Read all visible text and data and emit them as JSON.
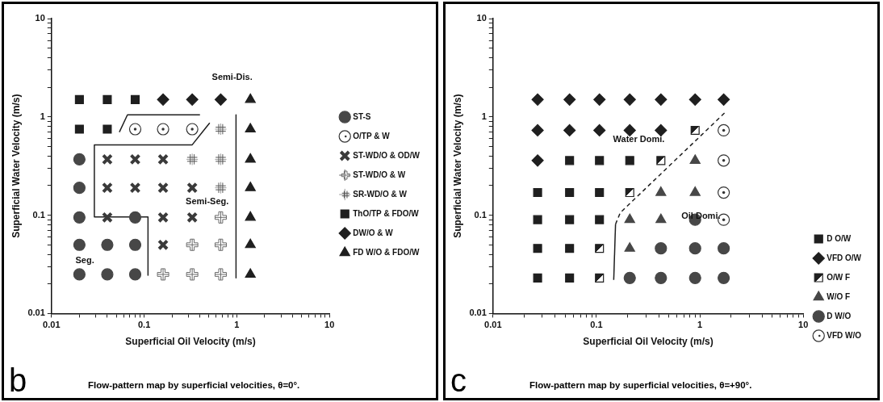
{
  "chart_data": [
    {
      "type": "scatter",
      "xlabel": "Superficial Oil Velocity (m/s)",
      "ylabel": "Superficial Water Velocity (m/s)",
      "log": "xy",
      "xlim": [
        0.01,
        10
      ],
      "ylim": [
        0.01,
        10
      ],
      "xticks": [
        0.01,
        {
          "value": 0.02,
          "label": null
        },
        {
          "value": 0.03,
          "label": null
        },
        {
          "value": 0.04,
          "label": null
        },
        {
          "value": 0.05,
          "label": null
        },
        {
          "value": 0.06,
          "label": null
        },
        {
          "value": 0.07,
          "label": null
        },
        {
          "value": 0.08,
          "label": null
        },
        {
          "value": 0.09,
          "label": null
        },
        0.1,
        {
          "value": 0.2,
          "label": null
        },
        {
          "value": 0.3,
          "label": null
        },
        {
          "value": 0.4,
          "label": null
        },
        {
          "value": 0.5,
          "label": null
        },
        {
          "value": 0.6,
          "label": null
        },
        {
          "value": 0.7,
          "label": null
        },
        {
          "value": 0.8,
          "label": null
        },
        {
          "value": 0.9,
          "label": null
        },
        1,
        {
          "value": 2,
          "label": null
        },
        {
          "value": 3,
          "label": null
        },
        {
          "value": 4,
          "label": null
        },
        {
          "value": 5,
          "label": null
        },
        {
          "value": 6,
          "label": null
        },
        {
          "value": 7,
          "label": null
        },
        {
          "value": 8,
          "label": null
        },
        {
          "value": 9,
          "label": null
        },
        10
      ],
      "yticks": [
        0.01,
        {
          "value": 0.02,
          "label": null
        },
        {
          "value": 0.03,
          "label": null
        },
        {
          "value": 0.04,
          "label": null
        },
        {
          "value": 0.05,
          "label": null
        },
        {
          "value": 0.06,
          "label": null
        },
        {
          "value": 0.07,
          "label": null
        },
        {
          "value": 0.08,
          "label": null
        },
        {
          "value": 0.09,
          "label": null
        },
        0.1,
        {
          "value": 0.2,
          "label": null
        },
        {
          "value": 0.3,
          "label": null
        },
        {
          "value": 0.4,
          "label": null
        },
        {
          "value": 0.5,
          "label": null
        },
        {
          "value": 0.6,
          "label": null
        },
        {
          "value": 0.7,
          "label": null
        },
        {
          "value": 0.8,
          "label": null
        },
        {
          "value": 0.9,
          "label": null
        },
        1,
        {
          "value": 2,
          "label": null
        },
        {
          "value": 3,
          "label": null
        },
        {
          "value": 4,
          "label": null
        },
        {
          "value": 5,
          "label": null
        },
        {
          "value": 6,
          "label": null
        },
        {
          "value": 7,
          "label": null
        },
        {
          "value": 8,
          "label": null
        },
        {
          "value": 9,
          "label": null
        },
        10
      ],
      "legend": "right",
      "series": [
        {
          "name": "ST-S",
          "marker": "circle",
          "color": "#474747",
          "x": [
            0.02,
            0.02,
            0.02,
            0.08,
            0.02,
            0.04,
            0.08,
            0.02,
            0.04,
            0.08
          ],
          "values": [
            0.37,
            0.19,
            0.095,
            0.095,
            0.05,
            0.05,
            0.05,
            0.025,
            0.025,
            0.025
          ]
        },
        {
          "name": "O/TP & W",
          "marker": "circle",
          "color": "#333333",
          "x": [
            0.08,
            0.16,
            0.33
          ],
          "values": [
            0.75,
            0.75,
            0.75
          ]
        },
        {
          "name": "ST-WD/O & OD/W",
          "marker": "cross",
          "color": "#3a3a3a",
          "x": [
            0.04,
            0.08,
            0.16,
            0.04,
            0.08,
            0.16,
            0.33,
            0.04,
            0.16,
            0.33,
            0.16
          ],
          "values": [
            0.37,
            0.37,
            0.37,
            0.19,
            0.19,
            0.19,
            0.19,
            0.095,
            0.095,
            0.095,
            0.05
          ]
        },
        {
          "name": "ST-WD/O & W",
          "marker": "cross",
          "color": "#6a6a6a",
          "x": [
            0.67,
            0.33,
            0.67,
            0.16,
            0.33,
            0.67
          ],
          "values": [
            0.095,
            0.05,
            0.05,
            0.025,
            0.025,
            0.025
          ]
        },
        {
          "name": "SR-WD/O & W",
          "marker": "cross",
          "color": "#555555",
          "x": [
            0.67,
            0.33,
            0.67,
            0.67
          ],
          "values": [
            0.75,
            0.37,
            0.37,
            0.19
          ]
        },
        {
          "name": "ThO/TP & FDO/W",
          "marker": "square",
          "color": "#1f1f1f",
          "x": [
            0.02,
            0.04,
            0.08,
            0.02,
            0.04
          ],
          "values": [
            1.5,
            1.5,
            1.5,
            0.75,
            0.75
          ]
        },
        {
          "name": "DW/O & W",
          "marker": "diamond",
          "color": "#1f1f1f",
          "x": [
            0.16,
            0.33,
            0.67
          ],
          "values": [
            1.5,
            1.5,
            1.5
          ]
        },
        {
          "name": "FD W/O & FDO/W",
          "marker": "triangle",
          "color": "#1f1f1f",
          "x": [
            1.4,
            1.4,
            1.4,
            1.4,
            1.4,
            1.4,
            1.4
          ],
          "values": [
            1.5,
            0.75,
            0.37,
            0.19,
            0.095,
            0.05,
            0.025
          ]
        },
        {
          "type": "line",
          "marker": "none",
          "line_style": "solid",
          "color": "#1f1f1f",
          "x": [
            0.054,
            0.066,
            0.4
          ],
          "values": [
            0.7,
            1.05,
            1.05
          ]
        },
        {
          "type": "line",
          "marker": "none",
          "line_style": "solid",
          "color": "#1f1f1f",
          "x": [
            0.51,
            0.33,
            0.029,
            0.029,
            0.11,
            0.11
          ],
          "values": [
            0.87,
            0.52,
            0.52,
            0.096,
            0.096,
            0.0245
          ]
        },
        {
          "type": "line",
          "marker": "none",
          "line_style": "solid",
          "color": "#1f1f1f",
          "x": [
            0.98,
            0.98
          ],
          "values": [
            1.05,
            0.023
          ]
        }
      ],
      "annotations": [
        "Semi-Dis.",
        "Semi-Seg.",
        "Seg.",
        "b",
        "Flow-pattern map by superficial velocities, θ=0°."
      ]
    },
    {
      "type": "scatter",
      "xlabel": "Superficial Oil Velocity (m/s)",
      "ylabel": "Superficial Water Velocity (m/s)",
      "log": "xy",
      "xlim": [
        0.01,
        10
      ],
      "ylim": [
        0.01,
        10
      ],
      "xticks": [
        0.01,
        {
          "value": 0.02,
          "label": null
        },
        {
          "value": 0.03,
          "label": null
        },
        {
          "value": 0.04,
          "label": null
        },
        {
          "value": 0.05,
          "label": null
        },
        {
          "value": 0.06,
          "label": null
        },
        {
          "value": 0.07,
          "label": null
        },
        {
          "value": 0.08,
          "label": null
        },
        {
          "value": 0.09,
          "label": null
        },
        0.1,
        {
          "value": 0.2,
          "label": null
        },
        {
          "value": 0.3,
          "label": null
        },
        {
          "value": 0.4,
          "label": null
        },
        {
          "value": 0.5,
          "label": null
        },
        {
          "value": 0.6,
          "label": null
        },
        {
          "value": 0.7,
          "label": null
        },
        {
          "value": 0.8,
          "label": null
        },
        {
          "value": 0.9,
          "label": null
        },
        1,
        {
          "value": 2,
          "label": null
        },
        {
          "value": 3,
          "label": null
        },
        {
          "value": 4,
          "label": null
        },
        {
          "value": 5,
          "label": null
        },
        {
          "value": 6,
          "label": null
        },
        {
          "value": 7,
          "label": null
        },
        {
          "value": 8,
          "label": null
        },
        {
          "value": 9,
          "label": null
        },
        10
      ],
      "yticks": [
        0.01,
        {
          "value": 0.02,
          "label": null
        },
        {
          "value": 0.03,
          "label": null
        },
        {
          "value": 0.04,
          "label": null
        },
        {
          "value": 0.05,
          "label": null
        },
        {
          "value": 0.06,
          "label": null
        },
        {
          "value": 0.07,
          "label": null
        },
        {
          "value": 0.08,
          "label": null
        },
        {
          "value": 0.09,
          "label": null
        },
        0.1,
        {
          "value": 0.2,
          "label": null
        },
        {
          "value": 0.3,
          "label": null
        },
        {
          "value": 0.4,
          "label": null
        },
        {
          "value": 0.5,
          "label": null
        },
        {
          "value": 0.6,
          "label": null
        },
        {
          "value": 0.7,
          "label": null
        },
        {
          "value": 0.8,
          "label": null
        },
        {
          "value": 0.9,
          "label": null
        },
        1,
        {
          "value": 2,
          "label": null
        },
        {
          "value": 3,
          "label": null
        },
        {
          "value": 4,
          "label": null
        },
        {
          "value": 5,
          "label": null
        },
        {
          "value": 6,
          "label": null
        },
        {
          "value": 7,
          "label": null
        },
        {
          "value": 8,
          "label": null
        },
        {
          "value": 9,
          "label": null
        },
        10
      ],
      "legend": "bottom right",
      "series": [
        {
          "name": "D O/W",
          "marker": "square",
          "color": "#1f1f1f",
          "x": [
            0.055,
            0.107,
            0.21,
            0.027,
            0.055,
            0.107,
            0.027,
            0.055,
            0.107,
            0.027,
            0.055,
            0.027,
            0.055
          ],
          "values": [
            0.36,
            0.36,
            0.36,
            0.17,
            0.17,
            0.17,
            0.09,
            0.09,
            0.09,
            0.046,
            0.046,
            0.023,
            0.023
          ]
        },
        {
          "name": "VFD O/W",
          "marker": "diamond",
          "color": "#1f1f1f",
          "x": [
            0.027,
            0.055,
            0.107,
            0.21,
            0.42,
            0.9,
            1.7,
            0.027,
            0.055,
            0.107,
            0.21,
            0.42,
            0.027
          ],
          "values": [
            1.5,
            1.5,
            1.5,
            1.5,
            1.5,
            1.5,
            1.5,
            0.73,
            0.73,
            0.73,
            0.73,
            0.73,
            0.36
          ]
        },
        {
          "name": "O/W F",
          "marker": "square",
          "color": "#1f1f1f",
          "x": [
            0.9,
            0.42,
            0.21,
            0.107,
            0.107
          ],
          "values": [
            0.73,
            0.36,
            0.17,
            0.046,
            0.023
          ]
        },
        {
          "name": "W/O F",
          "marker": "triangle",
          "color": "#474747",
          "x": [
            0.9,
            0.42,
            0.9,
            0.21,
            0.42,
            0.21
          ],
          "values": [
            0.36,
            0.17,
            0.17,
            0.09,
            0.09,
            0.046
          ]
        },
        {
          "name": "D W/O",
          "marker": "circle",
          "color": "#474747",
          "x": [
            0.9,
            0.42,
            0.9,
            1.7,
            0.21,
            0.42,
            0.9,
            1.7
          ],
          "values": [
            0.09,
            0.046,
            0.046,
            0.046,
            0.023,
            0.023,
            0.023,
            0.023
          ]
        },
        {
          "name": "VFD W/O",
          "marker": "circle",
          "color": "#333333",
          "x": [
            1.7,
            1.7,
            1.7,
            1.7
          ],
          "values": [
            0.73,
            0.36,
            0.17,
            0.09
          ]
        },
        {
          "type": "line",
          "marker": "none",
          "line_style": "solid",
          "color": "#1f1f1f",
          "x": [
            0.147,
            0.153
          ],
          "values": [
            0.022,
            0.081
          ]
        },
        {
          "type": "line",
          "marker": "none",
          "line_style": "dashed",
          "color": "#1f1f1f",
          "x": [
            0.153,
            0.17,
            1.74
          ],
          "values": [
            0.081,
            0.106,
            1.1
          ]
        }
      ],
      "annotations": [
        "Water Domi.",
        "Oil Domi.",
        "c",
        "Flow-pattern map by superficial velocities, θ=+90°."
      ]
    }
  ]
}
